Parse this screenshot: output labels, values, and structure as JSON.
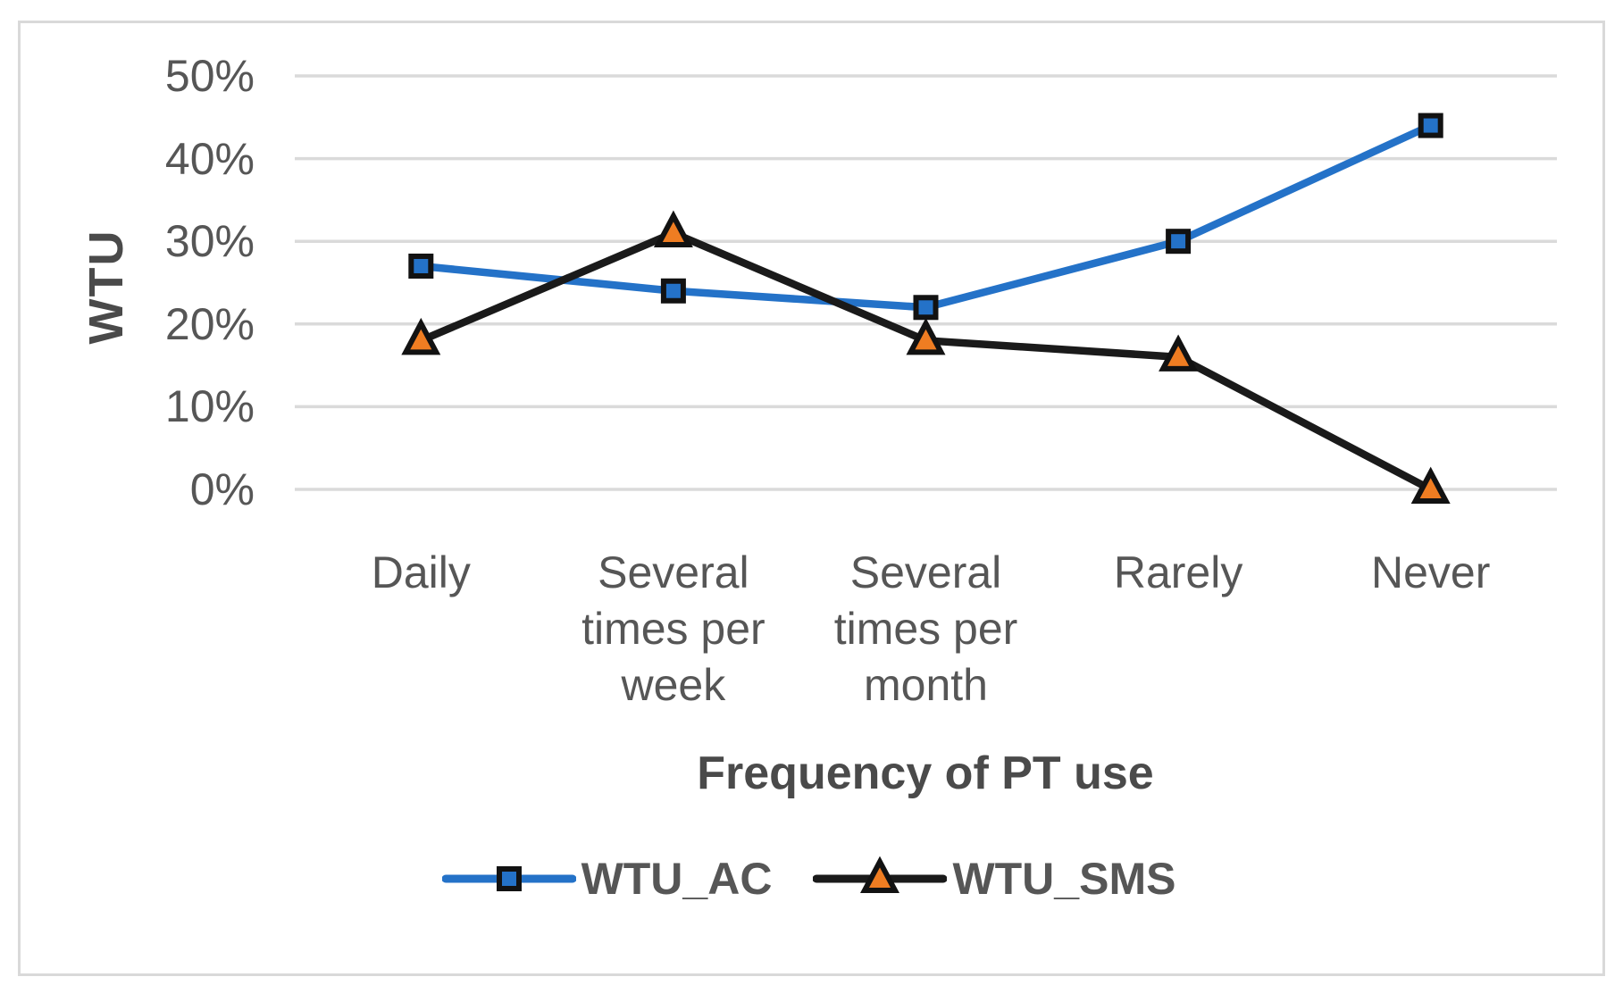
{
  "chart_data": {
    "type": "line",
    "title": "",
    "xlabel": "Frequency of PT use",
    "ylabel": "WTU",
    "categories": [
      "Daily",
      "Several times per week",
      "Several times per month",
      "Rarely",
      "Never"
    ],
    "category_lines": [
      [
        "Daily"
      ],
      [
        "Several",
        "times per",
        "week"
      ],
      [
        "Several",
        "times per",
        "month"
      ],
      [
        "Rarely"
      ],
      [
        "Never"
      ]
    ],
    "series": [
      {
        "name": "WTU_AC",
        "marker": "square",
        "line_color": "#2472C8",
        "marker_fill": "#2472C8",
        "marker_stroke": "#121212",
        "values": [
          27,
          24,
          22,
          30,
          44
        ]
      },
      {
        "name": "WTU_SMS",
        "marker": "triangle",
        "line_color": "#1A1A1A",
        "marker_fill": "#EF7D22",
        "marker_stroke": "#121212",
        "values": [
          18,
          31,
          18,
          16,
          0
        ]
      }
    ],
    "ylim": [
      0,
      50
    ],
    "yticks": [
      0,
      10,
      20,
      30,
      40,
      50
    ],
    "ytick_labels": [
      "0%",
      "10%",
      "20%",
      "30%",
      "40%",
      "50%"
    ],
    "value_unit": "%",
    "grid": true,
    "legend_position": "bottom",
    "colors": {
      "background": "#FFFFFF",
      "frame_border": "#D9D9D9",
      "gridline": "#DADADA",
      "tick_text": "#565656",
      "axis_title_text": "#4A4A4A",
      "legend_text": "#565656"
    }
  }
}
